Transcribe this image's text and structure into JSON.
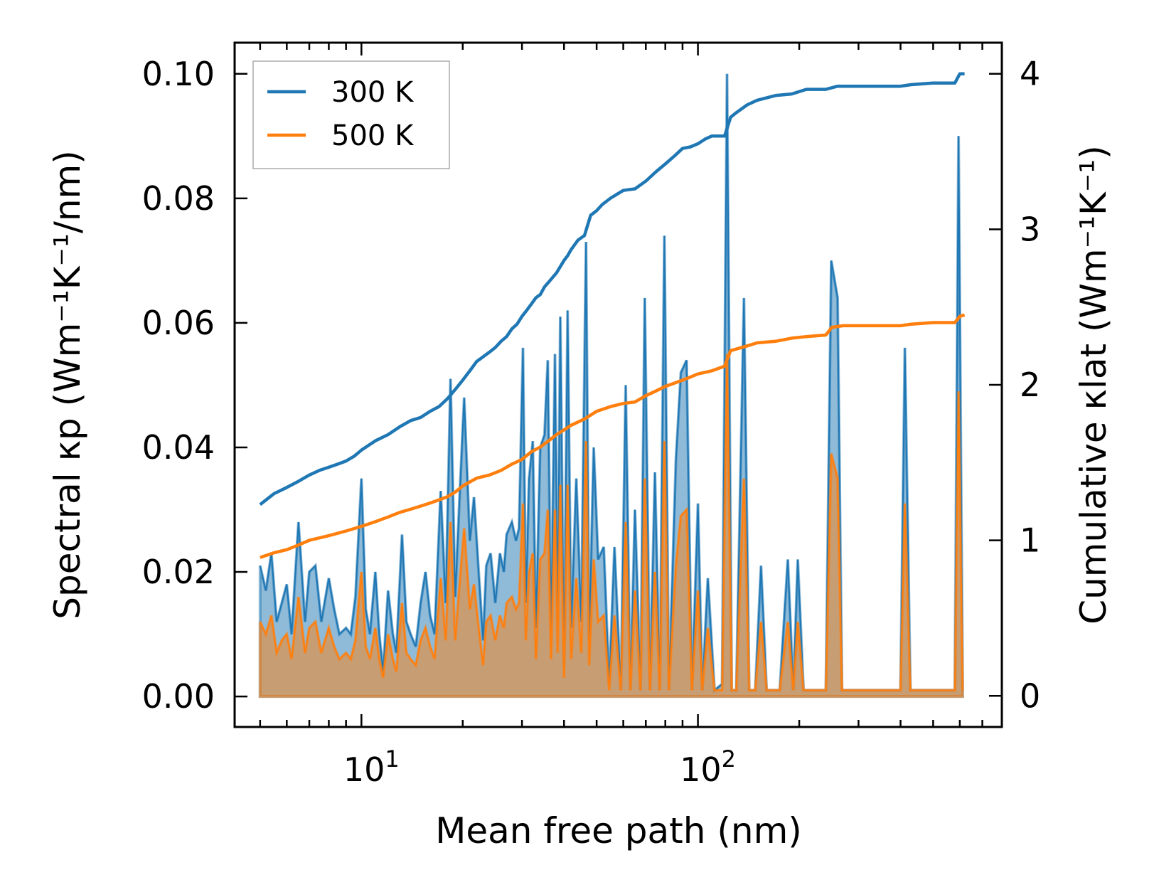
{
  "chart_data": {
    "type": "area+line (dual axis)",
    "title": "",
    "xlabel": "Mean free path (nm)",
    "ylabel_left": "Spectral κp (Wm⁻¹K⁻¹/nm)",
    "ylabel_right": "Cumulative κlat (Wm⁻¹K⁻¹)",
    "xscale": "log",
    "xlim": [
      4.2,
      800
    ],
    "ylim_left": [
      -0.0049,
      0.105
    ],
    "ylim_right": [
      -0.2,
      4.2
    ],
    "x_tick_labels": [
      {
        "value": 10,
        "base": "10",
        "exp": "1"
      },
      {
        "value": 100,
        "base": "10",
        "exp": "2"
      }
    ],
    "y_left_ticks": [
      {
        "value": 0.0,
        "label": "0.00"
      },
      {
        "value": 0.02,
        "label": "0.02"
      },
      {
        "value": 0.04,
        "label": "0.04"
      },
      {
        "value": 0.06,
        "label": "0.06"
      },
      {
        "value": 0.08,
        "label": "0.08"
      },
      {
        "value": 0.1,
        "label": "0.10"
      }
    ],
    "y_right_ticks": [
      {
        "value": 0,
        "label": "0"
      },
      {
        "value": 1,
        "label": "1"
      },
      {
        "value": 2,
        "label": "2"
      },
      {
        "value": 3,
        "label": "3"
      },
      {
        "value": 4,
        "label": "4"
      }
    ],
    "legend": {
      "position": "top-left",
      "entries": [
        {
          "label": "300 K",
          "color": "#1f77b4"
        },
        {
          "label": "500 K",
          "color": "#ff7f0e"
        }
      ]
    },
    "colors": {
      "series_300": "#1f77b4",
      "series_500": "#ff7f0e"
    },
    "spectral_300K": [
      [
        5.0,
        0.021
      ],
      [
        5.2,
        0.017
      ],
      [
        5.4,
        0.023
      ],
      [
        5.6,
        0.012
      ],
      [
        5.8,
        0.015
      ],
      [
        6.0,
        0.018
      ],
      [
        6.2,
        0.01
      ],
      [
        6.5,
        0.028
      ],
      [
        6.8,
        0.012
      ],
      [
        7.0,
        0.02
      ],
      [
        7.3,
        0.021
      ],
      [
        7.6,
        0.012
      ],
      [
        8.0,
        0.019
      ],
      [
        8.3,
        0.014
      ],
      [
        8.6,
        0.01
      ],
      [
        9.0,
        0.011
      ],
      [
        9.3,
        0.01
      ],
      [
        9.6,
        0.016
      ],
      [
        10.0,
        0.035
      ],
      [
        10.3,
        0.014
      ],
      [
        10.6,
        0.01
      ],
      [
        11.0,
        0.02
      ],
      [
        11.3,
        0.01
      ],
      [
        11.6,
        0.004
      ],
      [
        12.0,
        0.017
      ],
      [
        12.4,
        0.01
      ],
      [
        12.7,
        0.007
      ],
      [
        13.2,
        0.026
      ],
      [
        13.6,
        0.012
      ],
      [
        14.0,
        0.01
      ],
      [
        14.5,
        0.008
      ],
      [
        15.0,
        0.015
      ],
      [
        15.5,
        0.02
      ],
      [
        16.0,
        0.013
      ],
      [
        16.5,
        0.01
      ],
      [
        17.2,
        0.033
      ],
      [
        17.8,
        0.015
      ],
      [
        18.4,
        0.051
      ],
      [
        19.0,
        0.016
      ],
      [
        19.5,
        0.03
      ],
      [
        20.2,
        0.048
      ],
      [
        21.0,
        0.025
      ],
      [
        21.6,
        0.032
      ],
      [
        22.3,
        0.02
      ],
      [
        23.0,
        0.009
      ],
      [
        23.5,
        0.021
      ],
      [
        24.2,
        0.023
      ],
      [
        25.0,
        0.015
      ],
      [
        25.8,
        0.023
      ],
      [
        26.5,
        0.02
      ],
      [
        27.0,
        0.026
      ],
      [
        28.0,
        0.028
      ],
      [
        28.8,
        0.025
      ],
      [
        29.4,
        0.027
      ],
      [
        30.2,
        0.056
      ],
      [
        30.8,
        0.015
      ],
      [
        31.5,
        0.035
      ],
      [
        32.3,
        0.041
      ],
      [
        33.0,
        0.011
      ],
      [
        34.0,
        0.04
      ],
      [
        35.0,
        0.042
      ],
      [
        35.8,
        0.054
      ],
      [
        36.6,
        0.01
      ],
      [
        37.6,
        0.055
      ],
      [
        38.3,
        0.012
      ],
      [
        39.0,
        0.061
      ],
      [
        40.0,
        0.005
      ],
      [
        41.0,
        0.062
      ],
      [
        42.0,
        0.011
      ],
      [
        43.5,
        0.035
      ],
      [
        45.0,
        0.012
      ],
      [
        46.5,
        0.073
      ],
      [
        47.5,
        0.009
      ],
      [
        49.0,
        0.04
      ],
      [
        50.5,
        0.022
      ],
      [
        52.5,
        0.024
      ],
      [
        54.5,
        0.002
      ],
      [
        56.5,
        0.024
      ],
      [
        59.0,
        0.001
      ],
      [
        61.0,
        0.05
      ],
      [
        63.0,
        0.001
      ],
      [
        65.0,
        0.03
      ],
      [
        67.5,
        0.001
      ],
      [
        69.5,
        0.064
      ],
      [
        72.0,
        0.001
      ],
      [
        74.5,
        0.036
      ],
      [
        77.0,
        0.001
      ],
      [
        79.5,
        0.074
      ],
      [
        82.0,
        0.001
      ],
      [
        86.0,
        0.038
      ],
      [
        89.0,
        0.052
      ],
      [
        92.5,
        0.054
      ],
      [
        96.0,
        0.001
      ],
      [
        100.0,
        0.031
      ],
      [
        103.0,
        0.001
      ],
      [
        107.0,
        0.019
      ],
      [
        112.0,
        0.001
      ],
      [
        118.0,
        0.002
      ],
      [
        122.0,
        0.1
      ],
      [
        126.0,
        0.001
      ],
      [
        130.0,
        0.001
      ],
      [
        137.0,
        0.064
      ],
      [
        142.0,
        0.001
      ],
      [
        148.0,
        0.001
      ],
      [
        154.0,
        0.021
      ],
      [
        160.0,
        0.001
      ],
      [
        175.0,
        0.001
      ],
      [
        185.0,
        0.022
      ],
      [
        192.0,
        0.001
      ],
      [
        198.0,
        0.022
      ],
      [
        206.0,
        0.001
      ],
      [
        240.0,
        0.001
      ],
      [
        249.0,
        0.07
      ],
      [
        260.0,
        0.064
      ],
      [
        268.0,
        0.001
      ],
      [
        400.0,
        0.001
      ],
      [
        412.0,
        0.056
      ],
      [
        428.0,
        0.001
      ],
      [
        580.0,
        0.001
      ],
      [
        595.0,
        0.09
      ],
      [
        612.0,
        0.001
      ]
    ],
    "spectral_500K": [
      [
        5.0,
        0.012
      ],
      [
        5.2,
        0.01
      ],
      [
        5.4,
        0.013
      ],
      [
        5.6,
        0.007
      ],
      [
        5.8,
        0.009
      ],
      [
        6.0,
        0.01
      ],
      [
        6.2,
        0.006
      ],
      [
        6.5,
        0.016
      ],
      [
        6.8,
        0.007
      ],
      [
        7.0,
        0.011
      ],
      [
        7.3,
        0.012
      ],
      [
        7.6,
        0.007
      ],
      [
        8.0,
        0.011
      ],
      [
        8.3,
        0.008
      ],
      [
        8.6,
        0.006
      ],
      [
        9.0,
        0.007
      ],
      [
        9.3,
        0.006
      ],
      [
        9.6,
        0.009
      ],
      [
        10.0,
        0.02
      ],
      [
        10.3,
        0.008
      ],
      [
        10.6,
        0.006
      ],
      [
        11.0,
        0.011
      ],
      [
        11.3,
        0.006
      ],
      [
        11.6,
        0.003
      ],
      [
        12.0,
        0.01
      ],
      [
        12.4,
        0.006
      ],
      [
        12.7,
        0.004
      ],
      [
        13.2,
        0.015
      ],
      [
        13.6,
        0.007
      ],
      [
        14.0,
        0.006
      ],
      [
        14.5,
        0.005
      ],
      [
        15.0,
        0.009
      ],
      [
        15.5,
        0.011
      ],
      [
        16.0,
        0.008
      ],
      [
        16.5,
        0.006
      ],
      [
        17.2,
        0.019
      ],
      [
        17.8,
        0.009
      ],
      [
        18.4,
        0.028
      ],
      [
        19.0,
        0.009
      ],
      [
        19.5,
        0.017
      ],
      [
        20.2,
        0.027
      ],
      [
        21.0,
        0.014
      ],
      [
        21.6,
        0.018
      ],
      [
        22.3,
        0.011
      ],
      [
        23.0,
        0.005
      ],
      [
        23.5,
        0.012
      ],
      [
        24.2,
        0.013
      ],
      [
        25.0,
        0.009
      ],
      [
        25.8,
        0.013
      ],
      [
        26.5,
        0.011
      ],
      [
        27.0,
        0.015
      ],
      [
        28.0,
        0.016
      ],
      [
        28.8,
        0.014
      ],
      [
        29.4,
        0.015
      ],
      [
        30.2,
        0.031
      ],
      [
        30.8,
        0.009
      ],
      [
        31.5,
        0.02
      ],
      [
        32.3,
        0.023
      ],
      [
        33.0,
        0.006
      ],
      [
        34.0,
        0.022
      ],
      [
        35.0,
        0.023
      ],
      [
        35.8,
        0.03
      ],
      [
        36.6,
        0.006
      ],
      [
        37.6,
        0.03
      ],
      [
        38.3,
        0.007
      ],
      [
        39.0,
        0.034
      ],
      [
        40.0,
        0.003
      ],
      [
        41.0,
        0.034
      ],
      [
        42.0,
        0.006
      ],
      [
        43.5,
        0.019
      ],
      [
        45.0,
        0.007
      ],
      [
        46.5,
        0.041
      ],
      [
        47.5,
        0.005
      ],
      [
        49.0,
        0.022
      ],
      [
        50.5,
        0.012
      ],
      [
        52.5,
        0.013
      ],
      [
        54.5,
        0.001
      ],
      [
        56.5,
        0.013
      ],
      [
        59.0,
        0.001
      ],
      [
        61.0,
        0.028
      ],
      [
        63.0,
        0.001
      ],
      [
        65.0,
        0.017
      ],
      [
        67.5,
        0.001
      ],
      [
        69.5,
        0.035
      ],
      [
        72.0,
        0.001
      ],
      [
        74.5,
        0.02
      ],
      [
        77.0,
        0.001
      ],
      [
        79.5,
        0.041
      ],
      [
        82.0,
        0.001
      ],
      [
        86.0,
        0.021
      ],
      [
        89.0,
        0.029
      ],
      [
        92.5,
        0.03
      ],
      [
        96.0,
        0.001
      ],
      [
        100.0,
        0.017
      ],
      [
        103.0,
        0.001
      ],
      [
        107.0,
        0.011
      ],
      [
        112.0,
        0.001
      ],
      [
        118.0,
        0.001
      ],
      [
        122.0,
        0.055
      ],
      [
        126.0,
        0.001
      ],
      [
        130.0,
        0.001
      ],
      [
        137.0,
        0.035
      ],
      [
        142.0,
        0.001
      ],
      [
        148.0,
        0.001
      ],
      [
        154.0,
        0.012
      ],
      [
        160.0,
        0.001
      ],
      [
        175.0,
        0.001
      ],
      [
        185.0,
        0.012
      ],
      [
        192.0,
        0.001
      ],
      [
        198.0,
        0.012
      ],
      [
        206.0,
        0.001
      ],
      [
        240.0,
        0.001
      ],
      [
        249.0,
        0.039
      ],
      [
        260.0,
        0.035
      ],
      [
        268.0,
        0.001
      ],
      [
        400.0,
        0.001
      ],
      [
        412.0,
        0.031
      ],
      [
        428.0,
        0.001
      ],
      [
        580.0,
        0.001
      ],
      [
        595.0,
        0.049
      ],
      [
        612.0,
        0.001
      ]
    ],
    "cumulative_300K": [
      [
        5.0,
        1.23
      ],
      [
        5.5,
        1.3
      ],
      [
        6.0,
        1.34
      ],
      [
        6.5,
        1.38
      ],
      [
        7.0,
        1.42
      ],
      [
        7.5,
        1.45
      ],
      [
        8.0,
        1.47
      ],
      [
        8.5,
        1.49
      ],
      [
        9.0,
        1.51
      ],
      [
        9.5,
        1.54
      ],
      [
        10.0,
        1.58
      ],
      [
        11.0,
        1.64
      ],
      [
        12.0,
        1.68
      ],
      [
        13.0,
        1.73
      ],
      [
        14.0,
        1.77
      ],
      [
        15.0,
        1.79
      ],
      [
        16.0,
        1.83
      ],
      [
        17.0,
        1.86
      ],
      [
        18.0,
        1.91
      ],
      [
        19.0,
        1.97
      ],
      [
        20.0,
        2.03
      ],
      [
        21.0,
        2.09
      ],
      [
        22.0,
        2.15
      ],
      [
        23.0,
        2.18
      ],
      [
        24.0,
        2.21
      ],
      [
        25.0,
        2.24
      ],
      [
        26.0,
        2.28
      ],
      [
        27.0,
        2.31
      ],
      [
        28.0,
        2.36
      ],
      [
        29.0,
        2.39
      ],
      [
        30.0,
        2.44
      ],
      [
        31.0,
        2.48
      ],
      [
        32.0,
        2.52
      ],
      [
        33.0,
        2.56
      ],
      [
        34.0,
        2.58
      ],
      [
        35.0,
        2.63
      ],
      [
        36.0,
        2.66
      ],
      [
        37.0,
        2.69
      ],
      [
        38.0,
        2.72
      ],
      [
        39.0,
        2.76
      ],
      [
        40.0,
        2.8
      ],
      [
        41.0,
        2.83
      ],
      [
        42.0,
        2.87
      ],
      [
        44.0,
        2.93
      ],
      [
        46.0,
        2.96
      ],
      [
        48.0,
        3.09
      ],
      [
        50.0,
        3.12
      ],
      [
        52.0,
        3.16
      ],
      [
        55.0,
        3.2
      ],
      [
        60.0,
        3.25
      ],
      [
        65.0,
        3.26
      ],
      [
        70.0,
        3.31
      ],
      [
        75.0,
        3.37
      ],
      [
        80.0,
        3.42
      ],
      [
        85.0,
        3.47
      ],
      [
        90.0,
        3.52
      ],
      [
        95.0,
        3.53
      ],
      [
        100.0,
        3.55
      ],
      [
        105.0,
        3.58
      ],
      [
        110.0,
        3.6
      ],
      [
        120.0,
        3.6
      ],
      [
        125.0,
        3.72
      ],
      [
        130.0,
        3.75
      ],
      [
        140.0,
        3.8
      ],
      [
        150.0,
        3.83
      ],
      [
        170.0,
        3.86
      ],
      [
        190.0,
        3.87
      ],
      [
        210.0,
        3.9
      ],
      [
        240.0,
        3.9
      ],
      [
        260.0,
        3.92
      ],
      [
        280.0,
        3.92
      ],
      [
        320.0,
        3.92
      ],
      [
        370.0,
        3.92
      ],
      [
        400.0,
        3.92
      ],
      [
        430.0,
        3.93
      ],
      [
        500.0,
        3.94
      ],
      [
        580.0,
        3.94
      ],
      [
        600.0,
        4.0
      ],
      [
        620.0,
        4.0
      ]
    ],
    "cumulative_500K": [
      [
        5.0,
        0.89
      ],
      [
        5.5,
        0.92
      ],
      [
        6.0,
        0.94
      ],
      [
        6.5,
        0.97
      ],
      [
        7.0,
        1.0
      ],
      [
        8.0,
        1.03
      ],
      [
        9.0,
        1.06
      ],
      [
        10.0,
        1.09
      ],
      [
        11.0,
        1.12
      ],
      [
        12.0,
        1.15
      ],
      [
        13.0,
        1.18
      ],
      [
        14.0,
        1.2
      ],
      [
        15.0,
        1.22
      ],
      [
        16.0,
        1.24
      ],
      [
        17.0,
        1.26
      ],
      [
        18.0,
        1.28
      ],
      [
        19.0,
        1.31
      ],
      [
        20.0,
        1.35
      ],
      [
        22.0,
        1.4
      ],
      [
        24.0,
        1.42
      ],
      [
        26.0,
        1.45
      ],
      [
        28.0,
        1.49
      ],
      [
        30.0,
        1.52
      ],
      [
        32.0,
        1.57
      ],
      [
        34.0,
        1.6
      ],
      [
        36.0,
        1.64
      ],
      [
        38.0,
        1.68
      ],
      [
        40.0,
        1.71
      ],
      [
        42.0,
        1.74
      ],
      [
        46.0,
        1.78
      ],
      [
        50.0,
        1.83
      ],
      [
        55.0,
        1.86
      ],
      [
        60.0,
        1.88
      ],
      [
        65.0,
        1.89
      ],
      [
        70.0,
        1.93
      ],
      [
        75.0,
        1.96
      ],
      [
        80.0,
        1.99
      ],
      [
        85.0,
        2.01
      ],
      [
        90.0,
        2.03
      ],
      [
        95.0,
        2.05
      ],
      [
        100.0,
        2.07
      ],
      [
        110.0,
        2.09
      ],
      [
        120.0,
        2.12
      ],
      [
        125.0,
        2.22
      ],
      [
        130.0,
        2.23
      ],
      [
        140.0,
        2.25
      ],
      [
        150.0,
        2.27
      ],
      [
        170.0,
        2.28
      ],
      [
        190.0,
        2.3
      ],
      [
        210.0,
        2.31
      ],
      [
        240.0,
        2.32
      ],
      [
        250.0,
        2.37
      ],
      [
        270.0,
        2.38
      ],
      [
        320.0,
        2.38
      ],
      [
        400.0,
        2.38
      ],
      [
        430.0,
        2.39
      ],
      [
        500.0,
        2.4
      ],
      [
        580.0,
        2.4
      ],
      [
        600.0,
        2.44
      ],
      [
        620.0,
        2.45
      ]
    ]
  }
}
